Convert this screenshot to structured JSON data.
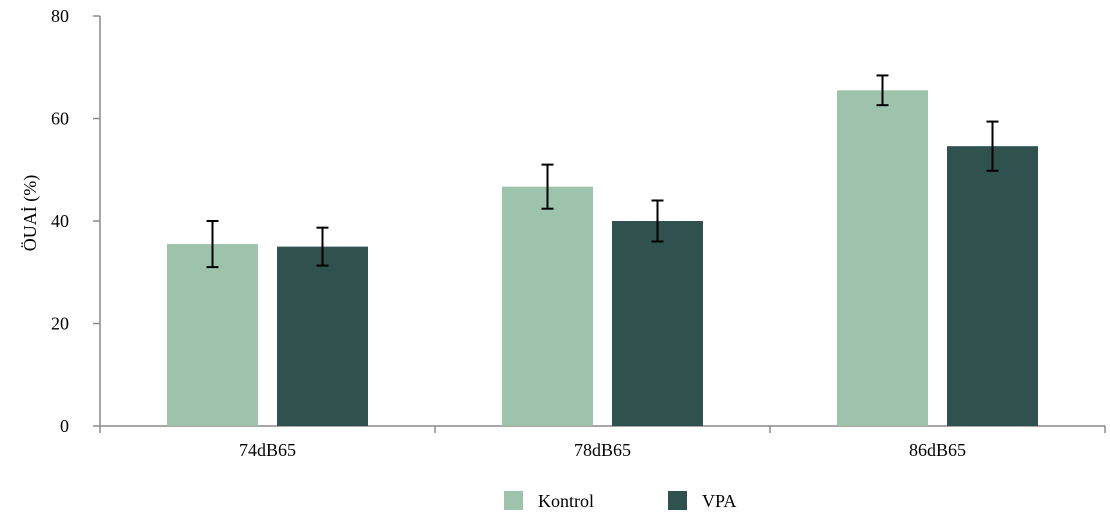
{
  "chart_data": {
    "type": "bar",
    "categories": [
      "74dB65",
      "78dB65",
      "86dB65"
    ],
    "series": [
      {
        "name": "Kontrol",
        "color": "#9dc3ad",
        "values": [
          35.5,
          46.7,
          65.5
        ],
        "errors": [
          4.5,
          4.3,
          2.9
        ]
      },
      {
        "name": "VPA",
        "color": "#2f524f",
        "values": [
          35.0,
          40.0,
          54.6
        ],
        "errors": [
          3.7,
          4.0,
          4.8
        ]
      }
    ],
    "title": "",
    "xlabel": "",
    "ylabel": "ÖUAİ (%)",
    "ylim": [
      0,
      80
    ],
    "yticks": [
      0,
      20,
      40,
      60,
      80
    ],
    "grid": false,
    "legend_position": "bottom"
  }
}
